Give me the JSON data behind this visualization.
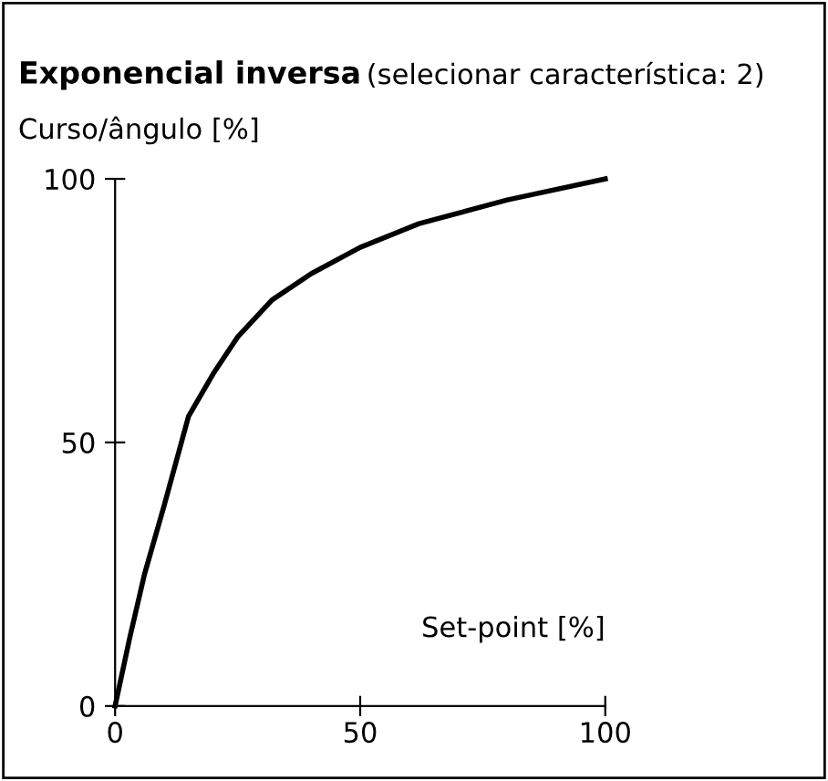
{
  "chart_data": {
    "type": "line",
    "title": "Exponencial inversa",
    "subtitle": "(selecionar característica: 2)",
    "xlabel": "Set-point [%]",
    "ylabel": "Curso/ângulo [%]",
    "x": [
      0,
      3,
      6,
      10,
      15,
      20,
      25,
      32,
      40,
      50,
      62,
      80,
      100
    ],
    "series": [
      {
        "color": "#000000",
        "values": [
          0,
          13,
          25,
          38,
          55,
          63,
          70,
          77,
          82,
          87,
          91.5,
          96,
          100
        ]
      }
    ],
    "xlim": [
      0,
      100
    ],
    "ylim": [
      0,
      100
    ],
    "xticks": [
      0,
      50,
      100
    ],
    "yticks": [
      0,
      50,
      100
    ],
    "grid": false,
    "legend": false,
    "marker": "none",
    "line_style": "solid"
  }
}
